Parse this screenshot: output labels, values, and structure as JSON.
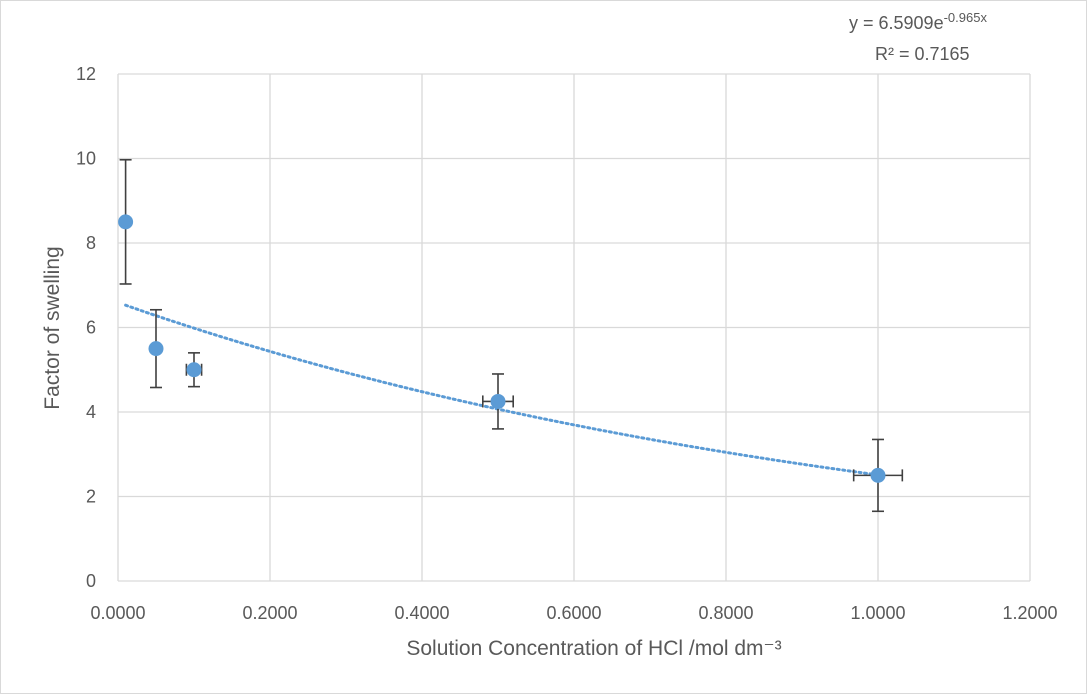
{
  "chart_data": {
    "type": "scatter",
    "title": "",
    "xlabel": "Solution Concentration of HCl /mol dm⁻³",
    "ylabel": "Factor of swelling",
    "xlim": [
      0,
      1.2
    ],
    "ylim": [
      0,
      12
    ],
    "x_ticks": [
      "0.0000",
      "0.2000",
      "0.4000",
      "0.6000",
      "0.8000",
      "1.0000",
      "1.2000"
    ],
    "y_ticks": [
      "0",
      "2",
      "4",
      "6",
      "8",
      "10",
      "12"
    ],
    "grid": true,
    "legend": "none",
    "marker_color": "#5b9bd5",
    "errorbar_color": "#404040",
    "series": [
      {
        "points": [
          {
            "x": 0.01,
            "y": 8.5,
            "y_err": 1.47,
            "x_err": 0
          },
          {
            "x": 0.05,
            "y": 5.5,
            "y_err": 0.92,
            "x_err": 0
          },
          {
            "x": 0.1,
            "y": 5.0,
            "y_err": 0.4,
            "x_err": 0.01
          },
          {
            "x": 0.5,
            "y": 4.25,
            "y_err": 0.65,
            "x_err": 0.02
          },
          {
            "x": 1.0,
            "y": 2.5,
            "y_err": 0.85,
            "x_err": 0.032
          }
        ]
      }
    ],
    "trendline": {
      "type": "exponential",
      "a": 6.5909,
      "b": -0.965,
      "x_range": [
        0.01,
        1.0
      ],
      "color": "#5b9bd5",
      "style": "dotted",
      "equation_main": "y = 6.5909e",
      "equation_exp": "-0.965x",
      "r_squared": "R² = 0.7165"
    }
  }
}
